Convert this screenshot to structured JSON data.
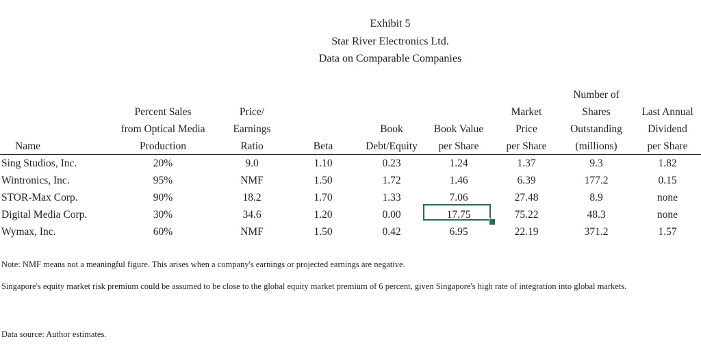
{
  "title": {
    "line1": "Exhibit 5",
    "line2": "Star River Electronics Ltd.",
    "line3": "Data on Comparable Companies"
  },
  "table": {
    "header_rows": [
      [
        "",
        "",
        "",
        "",
        "",
        "",
        "",
        "Number of",
        ""
      ],
      [
        "",
        "Percent Sales",
        "Price/",
        "",
        "",
        "",
        "Market",
        "Shares",
        "Last Annual"
      ],
      [
        "",
        "from Optical Media",
        "Earnings",
        "",
        "Book",
        "Book Value",
        "Price",
        "Outstanding",
        "Dividend"
      ],
      [
        "Name",
        "Production",
        "Ratio",
        "Beta",
        "Debt/Equity",
        "per Share",
        "per Share",
        "(millions)",
        "per Share"
      ]
    ],
    "columns": [
      "Name",
      "Percent Sales from Optical Media Production",
      "Price/Earnings Ratio",
      "Beta",
      "Book Debt/Equity",
      "Book Value per Share",
      "Market Price per Share",
      "Number of Shares Outstanding (millions)",
      "Last Annual Dividend per Share"
    ],
    "rows": [
      [
        "Sing Studios, Inc.",
        "20%",
        "9.0",
        "1.10",
        "0.23",
        "1.24",
        "1.37",
        "9.3",
        "1.82"
      ],
      [
        "Wintronics, Inc.",
        "95%",
        "NMF",
        "1.50",
        "1.72",
        "1.46",
        "6.39",
        "177.2",
        "0.15"
      ],
      [
        "STOR-Max Corp.",
        "90%",
        "18.2",
        "1.70",
        "1.33",
        "7.06",
        "27.48",
        "8.9",
        "none"
      ],
      [
        "Digital Media Corp.",
        "30%",
        "34.6",
        "1.20",
        "0.00",
        "17.75",
        "75.22",
        "48.3",
        "none"
      ],
      [
        "Wymax, Inc.",
        "60%",
        "NMF",
        "1.50",
        "0.42",
        "6.95",
        "22.19",
        "371.2",
        "1.57"
      ]
    ],
    "selected_cell": {
      "row": 3,
      "col": 5,
      "value": "17.75",
      "border_color": "#217346"
    }
  },
  "notes": {
    "note1": "Note:  NMF means not a meaningful figure.  This arises when a company's earnings or projected earnings are negative.",
    "note2": "Singapore's equity market risk premium could be assumed to be close to the global equity market premium of 6 percent, given Singapore's high rate of integration into global markets.",
    "source": "Data source: Author estimates."
  }
}
